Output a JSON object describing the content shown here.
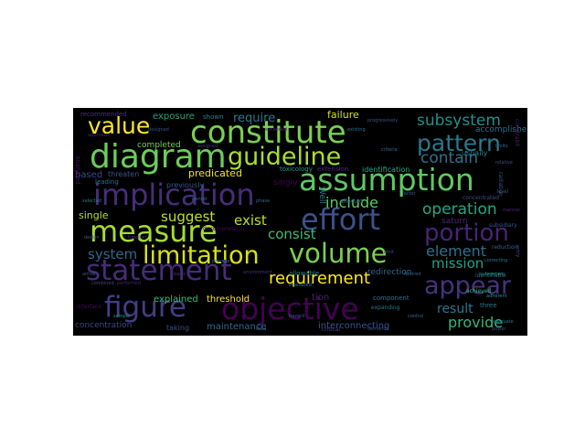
{
  "colors": {
    "background": "#000000",
    "page": "#ffffff",
    "palette": [
      "#440154",
      "#472c7a",
      "#3b518b",
      "#2c718e",
      "#21908d",
      "#27ad81",
      "#5cc863",
      "#aadc32",
      "#fde725"
    ]
  },
  "words": [
    {
      "text": "constitute",
      "color": "#7ad151"
    },
    {
      "text": "diagram",
      "color": "#6ccd5a"
    },
    {
      "text": "value",
      "color": "#fde725"
    },
    {
      "text": "guideline",
      "color": "#aadc32"
    },
    {
      "text": "assumption",
      "color": "#5ec962"
    },
    {
      "text": "pattern",
      "color": "#2a788e"
    },
    {
      "text": "implication",
      "color": "#472d7b"
    },
    {
      "text": "effort",
      "color": "#3b528b"
    },
    {
      "text": "measure",
      "color": "#a5db36"
    },
    {
      "text": "portion",
      "color": "#482475"
    },
    {
      "text": "volume",
      "color": "#7ad151"
    },
    {
      "text": "limitation",
      "color": "#d8e219"
    },
    {
      "text": "statement",
      "color": "#472c7a"
    },
    {
      "text": "requirement",
      "color": "#fde725"
    },
    {
      "text": "appear",
      "color": "#46337e"
    },
    {
      "text": "figure",
      "color": "#433e85"
    },
    {
      "text": "objective",
      "color": "#440154"
    },
    {
      "text": "subsystem",
      "color": "#21918c"
    },
    {
      "text": "contain",
      "color": "#2c728e"
    },
    {
      "text": "include",
      "color": "#5ec962"
    },
    {
      "text": "operation",
      "color": "#22a884"
    },
    {
      "text": "exist",
      "color": "#bddf26"
    },
    {
      "text": "suggest",
      "color": "#c2df23"
    },
    {
      "text": "consist",
      "color": "#3dbc74"
    },
    {
      "text": "element",
      "color": "#2c728e"
    },
    {
      "text": "mission",
      "color": "#1fa187"
    },
    {
      "text": "system",
      "color": "#31688e"
    },
    {
      "text": "result",
      "color": "#2a788e"
    },
    {
      "text": "provide",
      "color": "#35b779"
    },
    {
      "text": "require",
      "color": "#29798e"
    },
    {
      "text": "failure",
      "color": "#d2e21b"
    },
    {
      "text": "predicated",
      "color": "#f1e51d"
    },
    {
      "text": "completed",
      "color": "#73d056"
    },
    {
      "text": "exposure",
      "color": "#20a386"
    },
    {
      "text": "based",
      "color": "#3e4a89"
    },
    {
      "text": "threaten",
      "color": "#3a548c"
    },
    {
      "text": "single",
      "color": "#b8de29"
    },
    {
      "text": "explained",
      "color": "#3aba76"
    },
    {
      "text": "threshold",
      "color": "#f1e51d"
    },
    {
      "text": "maintenance",
      "color": "#31688e"
    },
    {
      "text": "interconnecting",
      "color": "#3b528b"
    },
    {
      "text": "concentration",
      "color": "#3f4788"
    },
    {
      "text": "accomplished",
      "color": "#2c728e"
    },
    {
      "text": "singly",
      "color": "#440154"
    },
    {
      "text": "saturn",
      "color": "#482878"
    },
    {
      "text": "redirection",
      "color": "#33638d"
    },
    {
      "text": "tion",
      "color": "#481f70"
    },
    {
      "text": "toxicology",
      "color": "#1f988b"
    },
    {
      "text": "identification",
      "color": "#22a884"
    },
    {
      "text": "extension",
      "color": "#472d7b"
    },
    {
      "text": "previously",
      "color": "#38588c"
    },
    {
      "text": "leading",
      "color": "#2d708e"
    },
    {
      "text": "taking",
      "color": "#3d4e8a"
    },
    {
      "text": "Well",
      "color": "#287c8e"
    },
    {
      "text": "usually",
      "color": "#25848e"
    },
    {
      "text": "component",
      "color": "#2c728e"
    },
    {
      "text": "analyzed",
      "color": "#471365"
    },
    {
      "text": "shown",
      "color": "#277f8e"
    },
    {
      "text": "recommended",
      "color": "#46337e"
    },
    {
      "text": "affected",
      "color": "#31688e"
    },
    {
      "text": "allowable",
      "color": "#26828e"
    },
    {
      "text": "three",
      "color": "#2a788e"
    },
    {
      "text": "subsidiary",
      "color": "#39568c"
    },
    {
      "text": "identifiable",
      "color": "#2e6e8e"
    },
    {
      "text": "radiation",
      "color": "#38598c"
    },
    {
      "text": "concentrated",
      "color": "#3d4d8a"
    },
    {
      "text": "expanding",
      "color": "#2a788e"
    },
    {
      "text": "reduction",
      "color": "#33638d"
    },
    {
      "text": "subsystem",
      "color": "#1e9b8a"
    },
    {
      "text": "achieved",
      "color": "#35b779"
    },
    {
      "text": "assigned",
      "color": "#443983"
    },
    {
      "text": "decompression",
      "color": "#440154"
    },
    {
      "text": "constraint",
      "color": "#482475"
    },
    {
      "text": "criteria",
      "color": "#2c728e"
    },
    {
      "text": "approach",
      "color": "#482878"
    },
    {
      "text": "critical",
      "color": "#3e4989"
    },
    {
      "text": "evaluated",
      "color": "#2a788e"
    },
    {
      "text": "progressively",
      "color": "#3b528b"
    },
    {
      "text": "arrive",
      "color": "#38588c"
    },
    {
      "text": "combined",
      "color": "#404588"
    },
    {
      "text": "interface",
      "color": "#46085c"
    },
    {
      "text": "desired",
      "color": "#355f8d"
    },
    {
      "text": "limits",
      "color": "#2e6f8e"
    },
    {
      "text": "level",
      "color": "#31688e"
    },
    {
      "text": "adequate",
      "color": "#2c728e"
    },
    {
      "text": "entry",
      "color": "#39568c"
    },
    {
      "text": "demands",
      "color": "#3f4788"
    },
    {
      "text": "environment",
      "color": "#46327e"
    },
    {
      "text": "performed",
      "color": "#482475"
    },
    {
      "text": "correcting",
      "color": "#287c8e"
    },
    {
      "text": "adherent",
      "color": "#21918c"
    },
    {
      "text": "designed",
      "color": "#3b528b"
    },
    {
      "text": "exceeded",
      "color": "#482878"
    },
    {
      "text": "existing",
      "color": "#2c728e"
    },
    {
      "text": "relative",
      "color": "#3e4a89"
    },
    {
      "text": "selected",
      "color": "#29798e"
    },
    {
      "text": "phase",
      "color": "#31688e"
    },
    {
      "text": "function",
      "color": "#443a83"
    },
    {
      "text": "process",
      "color": "#2a788e"
    },
    {
      "text": "factor",
      "color": "#33638d"
    },
    {
      "text": "design",
      "color": "#3b528b"
    },
    {
      "text": "basis",
      "color": "#46337e"
    },
    {
      "text": "sample",
      "color": "#1f988b"
    },
    {
      "text": "hazard",
      "color": "#355f8d"
    },
    {
      "text": "control",
      "color": "#2c728e"
    },
    {
      "text": "power",
      "color": "#3e4989"
    },
    {
      "text": "manner",
      "color": "#482878"
    },
    {
      "text": "period",
      "color": "#2a788e"
    },
    {
      "text": "limit",
      "color": "#404588"
    },
    {
      "text": "data",
      "color": "#31688e"
    }
  ]
}
